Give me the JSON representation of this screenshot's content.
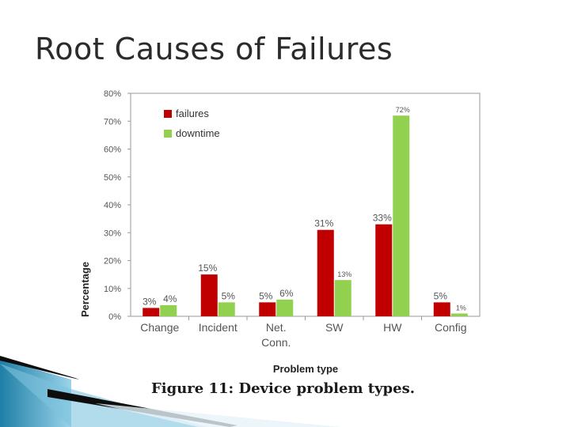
{
  "slide": {
    "title": "Root Causes of Failures"
  },
  "figure": {
    "caption": "Figure 11: Device problem types."
  },
  "chart_data": {
    "type": "bar",
    "title": "",
    "xlabel": "Problem type",
    "ylabel": "Percentage",
    "ylim": [
      0,
      80
    ],
    "yticks": [
      "0%",
      "10%",
      "20%",
      "30%",
      "40%",
      "50%",
      "60%",
      "70%",
      "80%"
    ],
    "categories": [
      "Change",
      "Incident",
      "Net. Conn.",
      "SW",
      "HW",
      "Config"
    ],
    "category_lines": [
      [
        "Change"
      ],
      [
        "Incident"
      ],
      [
        "Net.",
        "Conn."
      ],
      [
        "SW"
      ],
      [
        "HW"
      ],
      [
        "Config"
      ]
    ],
    "legend_position": "top-left",
    "grid": false,
    "series": [
      {
        "name": "failures",
        "color": "#c00000",
        "values": [
          3,
          15,
          5,
          31,
          33,
          5
        ],
        "labels": [
          "3%",
          "15%",
          "5%",
          "31%",
          "33%",
          "5%"
        ]
      },
      {
        "name": "downtime",
        "color": "#92d050",
        "values": [
          4,
          5,
          6,
          13,
          72,
          1
        ],
        "labels": [
          "4%",
          "5%",
          "6%",
          "13%",
          "72%",
          "1%"
        ]
      }
    ]
  }
}
